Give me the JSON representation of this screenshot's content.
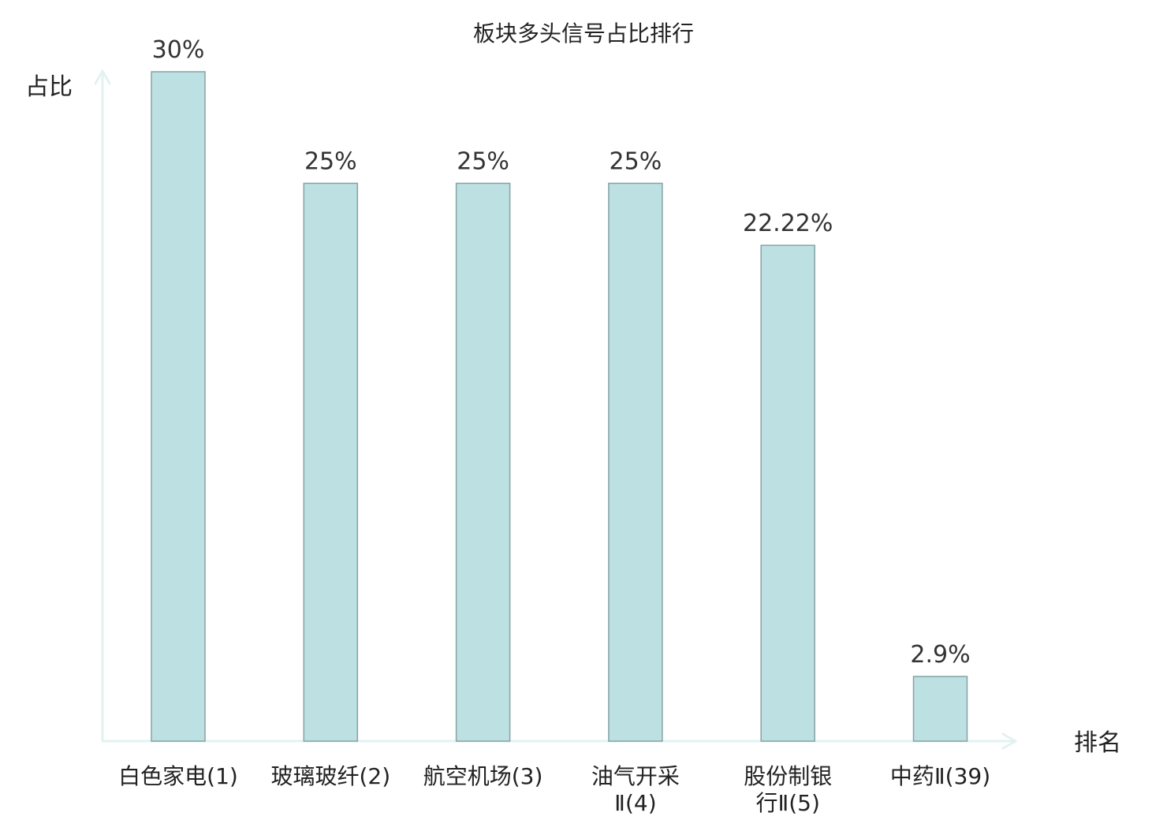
{
  "chart_data": {
    "type": "bar",
    "title": "板块多头信号占比排行",
    "ylabel": "占比",
    "xlabel": "排名",
    "categories": [
      "白色家电(1)",
      "玻璃玻纤(2)",
      "航空机场(3)",
      "油气开采Ⅱ(4)",
      "股份制银行Ⅱ(5)",
      "中药Ⅱ(39)"
    ],
    "category_lines": [
      [
        "白色家电(1)"
      ],
      [
        "玻璃玻纤(2)"
      ],
      [
        "航空机场(3)"
      ],
      [
        "油气开采",
        "Ⅱ(4)"
      ],
      [
        "股份制银",
        "行Ⅱ(5)"
      ],
      [
        "中药Ⅱ(39)"
      ]
    ],
    "values": [
      30,
      25,
      25,
      25,
      22.22,
      2.9
    ],
    "value_labels": [
      "30%",
      "25%",
      "25%",
      "25%",
      "22.22%",
      "2.9%"
    ],
    "ylim": [
      0,
      30
    ],
    "grid": false,
    "legend": "none",
    "colors": {
      "bar_fill": "#bde0e2",
      "bar_stroke": "#86a3a6",
      "axis": "#e3f2f0",
      "text": "#222222",
      "highlight_text": "#e41f1f"
    },
    "highlight_index": 5
  }
}
